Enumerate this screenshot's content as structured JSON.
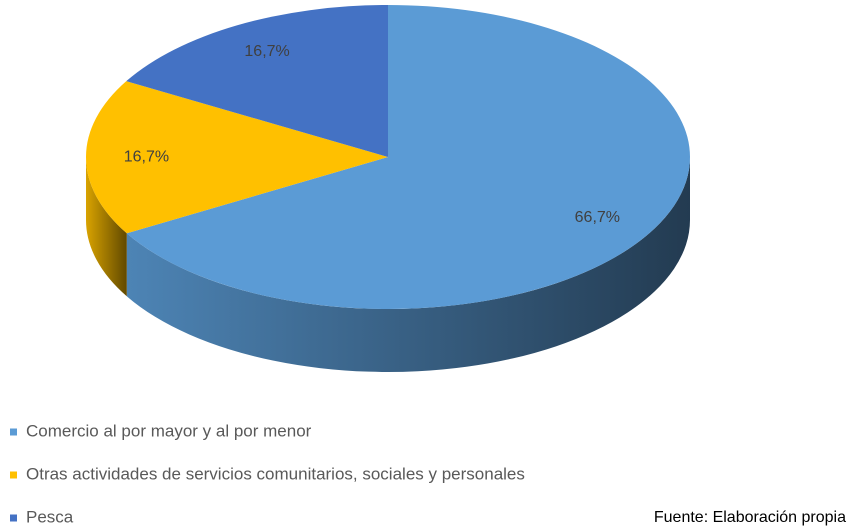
{
  "chart_data": {
    "type": "pie3d",
    "categories": [
      "Comercio al por mayor y al por menor",
      "Otras actividades de servicios comunitarios, sociales y personales",
      "Pesca"
    ],
    "values": [
      66.7,
      16.7,
      16.7
    ],
    "value_labels": [
      "66,7%",
      "16,7%",
      "16,7%"
    ],
    "colors": [
      "#5b9bd5",
      "#ffc000",
      "#4472c4"
    ],
    "source": "Fuente: Elaboración propia"
  }
}
